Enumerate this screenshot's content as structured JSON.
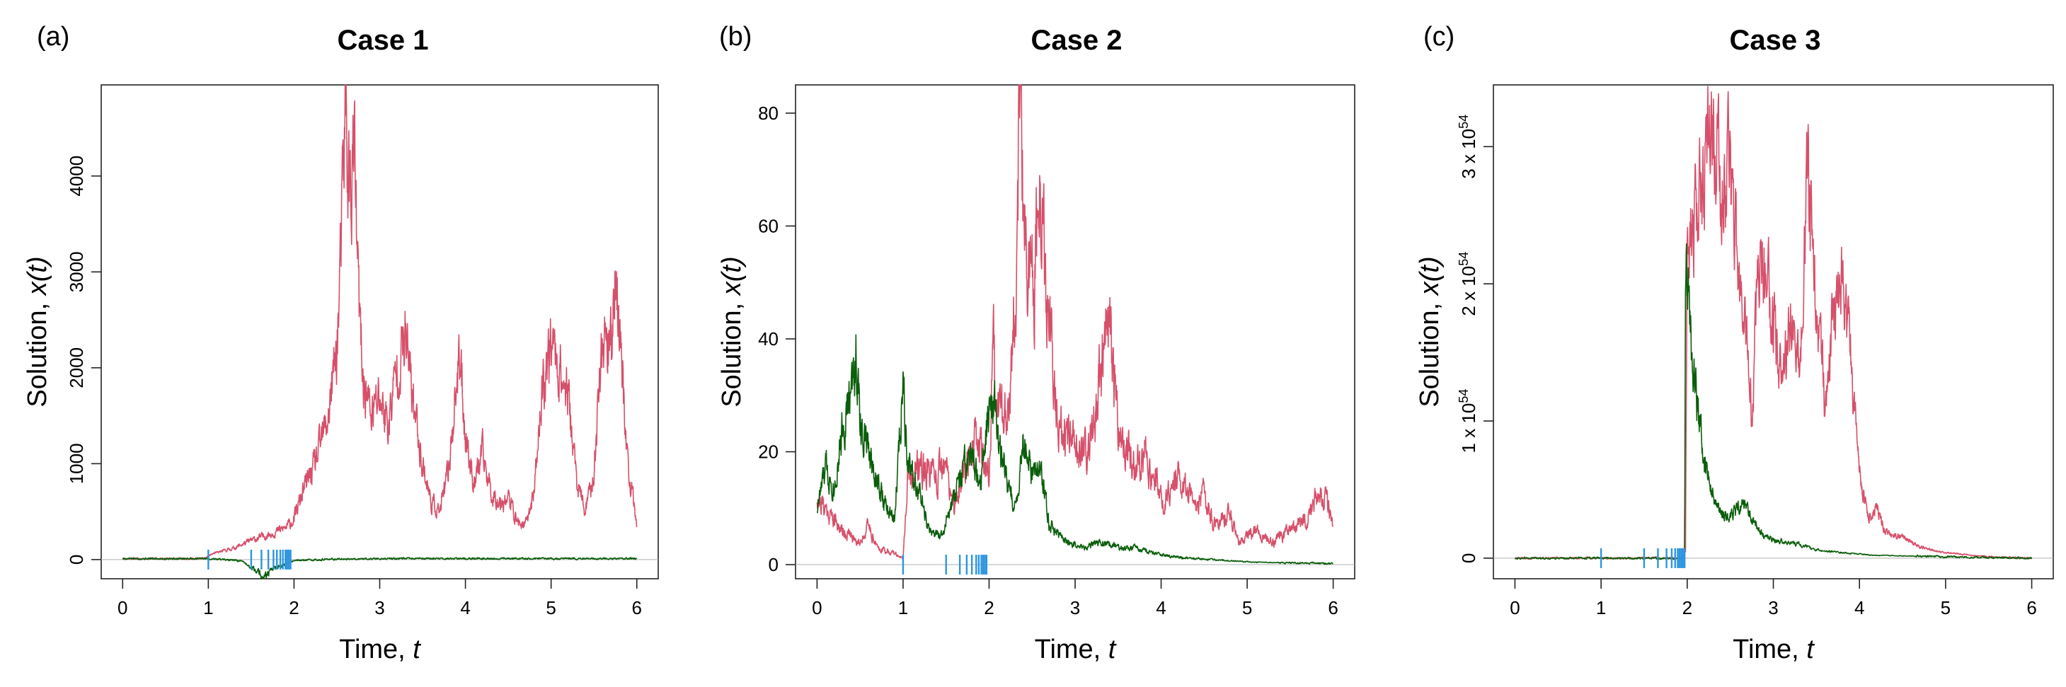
{
  "colors": {
    "red_series": "#d6506a",
    "green_series": "#0b5e0b",
    "event_marks": "#2b95e0"
  },
  "chart_data": [
    {
      "type": "line",
      "panel_label": "(a)",
      "title": "Case 1",
      "xlabel": "Time, ",
      "xlabel_var": "t",
      "ylabel": "Solution, ",
      "ylabel_var": "x(t)",
      "xlim": [
        -0.25,
        6.25
      ],
      "ylim": [
        -200,
        4950
      ],
      "x_ticks": [
        "0",
        "1",
        "2",
        "3",
        "4",
        "5",
        "6"
      ],
      "y_ticks": [
        {
          "v": 0,
          "label": "0"
        },
        {
          "v": 1000,
          "label": "1000"
        },
        {
          "v": 2000,
          "label": "2000"
        },
        {
          "v": 3000,
          "label": "3000"
        },
        {
          "v": 4000,
          "label": "4000"
        }
      ],
      "event_times": [
        1.0,
        1.5,
        1.62,
        1.7,
        1.76,
        1.8,
        1.84,
        1.87,
        1.9,
        1.92,
        1.94,
        1.96
      ],
      "series": [
        {
          "color": "red",
          "key": [
            [
              0,
              10
            ],
            [
              0.5,
              10
            ],
            [
              0.95,
              10
            ],
            [
              1.05,
              60
            ],
            [
              1.3,
              120
            ],
            [
              1.5,
              200
            ],
            [
              1.7,
              260
            ],
            [
              1.9,
              330
            ],
            [
              2.0,
              420
            ],
            [
              2.1,
              700
            ],
            [
              2.25,
              1000
            ],
            [
              2.4,
              1500
            ],
            [
              2.5,
              2200
            ],
            [
              2.55,
              3200
            ],
            [
              2.6,
              4700
            ],
            [
              2.65,
              3800
            ],
            [
              2.7,
              4300
            ],
            [
              2.75,
              2800
            ],
            [
              2.8,
              1900
            ],
            [
              2.9,
              1500
            ],
            [
              3.0,
              1700
            ],
            [
              3.1,
              1400
            ],
            [
              3.2,
              2000
            ],
            [
              3.3,
              2300
            ],
            [
              3.4,
              1600
            ],
            [
              3.5,
              1000
            ],
            [
              3.6,
              600
            ],
            [
              3.7,
              500
            ],
            [
              3.8,
              900
            ],
            [
              3.9,
              1900
            ],
            [
              3.95,
              2000
            ],
            [
              4.0,
              1300
            ],
            [
              4.1,
              800
            ],
            [
              4.2,
              1100
            ],
            [
              4.3,
              700
            ],
            [
              4.4,
              600
            ],
            [
              4.5,
              650
            ],
            [
              4.6,
              400
            ],
            [
              4.7,
              350
            ],
            [
              4.8,
              700
            ],
            [
              4.9,
              1800
            ],
            [
              5.0,
              2300
            ],
            [
              5.1,
              2000
            ],
            [
              5.2,
              1700
            ],
            [
              5.3,
              800
            ],
            [
              5.4,
              500
            ],
            [
              5.5,
              900
            ],
            [
              5.6,
              2400
            ],
            [
              5.7,
              2200
            ],
            [
              5.75,
              3100
            ],
            [
              5.8,
              2300
            ],
            [
              5.85,
              1700
            ],
            [
              5.9,
              900
            ],
            [
              6.0,
              380
            ]
          ],
          "noise": 0.13,
          "seed": 11
        },
        {
          "color": "green",
          "key": [
            [
              0,
              10
            ],
            [
              1.0,
              10
            ],
            [
              1.2,
              0
            ],
            [
              1.4,
              -20
            ],
            [
              1.55,
              -120
            ],
            [
              1.65,
              -180
            ],
            [
              1.75,
              -100
            ],
            [
              1.9,
              -40
            ],
            [
              2.0,
              -10
            ],
            [
              2.5,
              5
            ],
            [
              3.0,
              10
            ],
            [
              4.0,
              10
            ],
            [
              5.0,
              10
            ],
            [
              6.0,
              10
            ]
          ],
          "noise": 0.25,
          "seed": 5
        }
      ]
    },
    {
      "type": "line",
      "panel_label": "(b)",
      "title": "Case 2",
      "xlabel": "Time, ",
      "xlabel_var": "t",
      "ylabel": "Solution, ",
      "ylabel_var": "x(t)",
      "xlim": [
        -0.25,
        6.25
      ],
      "ylim": [
        -2.5,
        85
      ],
      "x_ticks": [
        "0",
        "1",
        "2",
        "3",
        "4",
        "5",
        "6"
      ],
      "y_ticks": [
        {
          "v": 0,
          "label": "0"
        },
        {
          "v": 20,
          "label": "20"
        },
        {
          "v": 40,
          "label": "40"
        },
        {
          "v": 60,
          "label": "60"
        },
        {
          "v": 80,
          "label": "80"
        }
      ],
      "event_times": [
        1.0,
        1.5,
        1.66,
        1.74,
        1.8,
        1.85,
        1.88,
        1.91,
        1.93,
        1.95,
        1.97
      ],
      "series": [
        {
          "color": "red",
          "key": [
            [
              0,
              12
            ],
            [
              0.1,
              10
            ],
            [
              0.3,
              6
            ],
            [
              0.5,
              4
            ],
            [
              0.6,
              7
            ],
            [
              0.7,
              3
            ],
            [
              0.9,
              2
            ],
            [
              1.0,
              1
            ],
            [
              1.05,
              14
            ],
            [
              1.2,
              18
            ],
            [
              1.35,
              15
            ],
            [
              1.5,
              17
            ],
            [
              1.6,
              10
            ],
            [
              1.75,
              20
            ],
            [
              1.9,
              22
            ],
            [
              2.0,
              15
            ],
            [
              2.05,
              40
            ],
            [
              2.1,
              30
            ],
            [
              2.2,
              25
            ],
            [
              2.3,
              45
            ],
            [
              2.35,
              80
            ],
            [
              2.4,
              60
            ],
            [
              2.5,
              50
            ],
            [
              2.6,
              62
            ],
            [
              2.7,
              40
            ],
            [
              2.8,
              25
            ],
            [
              3.0,
              20
            ],
            [
              3.2,
              22
            ],
            [
              3.3,
              35
            ],
            [
              3.4,
              42
            ],
            [
              3.5,
              25
            ],
            [
              3.7,
              16
            ],
            [
              3.8,
              20
            ],
            [
              4.0,
              12
            ],
            [
              4.2,
              15
            ],
            [
              4.4,
              10
            ],
            [
              4.5,
              13
            ],
            [
              4.6,
              7
            ],
            [
              4.8,
              9
            ],
            [
              4.9,
              4
            ],
            [
              5.1,
              6
            ],
            [
              5.3,
              4
            ],
            [
              5.5,
              6
            ],
            [
              5.7,
              8
            ],
            [
              5.85,
              13
            ],
            [
              5.95,
              10
            ],
            [
              6.0,
              7
            ]
          ],
          "noise": 0.16,
          "seed": 21
        },
        {
          "color": "green",
          "key": [
            [
              0,
              10
            ],
            [
              0.1,
              17
            ],
            [
              0.2,
              14
            ],
            [
              0.3,
              25
            ],
            [
              0.4,
              30
            ],
            [
              0.45,
              38
            ],
            [
              0.5,
              25
            ],
            [
              0.6,
              20
            ],
            [
              0.7,
              15
            ],
            [
              0.8,
              10
            ],
            [
              0.9,
              8
            ],
            [
              0.95,
              20
            ],
            [
              1.0,
              34
            ],
            [
              1.05,
              20
            ],
            [
              1.2,
              12
            ],
            [
              1.3,
              6
            ],
            [
              1.45,
              5
            ],
            [
              1.6,
              12
            ],
            [
              1.7,
              17
            ],
            [
              1.8,
              18
            ],
            [
              1.9,
              14
            ],
            [
              2.05,
              34
            ],
            [
              2.1,
              22
            ],
            [
              2.2,
              15
            ],
            [
              2.3,
              10
            ],
            [
              2.4,
              22
            ],
            [
              2.5,
              15
            ],
            [
              2.6,
              18
            ],
            [
              2.7,
              7
            ],
            [
              2.9,
              4
            ],
            [
              3.1,
              3
            ],
            [
              3.3,
              4
            ],
            [
              3.5,
              3
            ],
            [
              3.7,
              3
            ],
            [
              3.9,
              2
            ],
            [
              4.1,
              1.5
            ],
            [
              4.5,
              1
            ],
            [
              5.0,
              0.5
            ],
            [
              5.5,
              0.3
            ],
            [
              6.0,
              0.2
            ]
          ],
          "noise": 0.14,
          "seed": 33
        }
      ]
    },
    {
      "type": "line",
      "panel_label": "(c)",
      "title": "Case 3",
      "xlabel": "Time, ",
      "xlabel_var": "t",
      "ylabel": "Solution, ",
      "ylabel_var": "x(t)",
      "xlim": [
        -0.25,
        6.25
      ],
      "ylim": [
        -0.15,
        3.45
      ],
      "y_scale_note": "values in units of 10^54",
      "x_ticks": [
        "0",
        "1",
        "2",
        "3",
        "4",
        "5",
        "6"
      ],
      "y_ticks": [
        {
          "v": 0,
          "label": "0"
        },
        {
          "v": 1,
          "label": "1 x 10",
          "exp": "54"
        },
        {
          "v": 2,
          "label": "2 x 10",
          "exp": "54"
        },
        {
          "v": 3,
          "label": "3 x 10",
          "exp": "54"
        }
      ],
      "event_times": [
        1.0,
        1.5,
        1.66,
        1.76,
        1.82,
        1.86,
        1.89,
        1.91,
        1.93,
        1.95,
        1.97
      ],
      "series": [
        {
          "color": "red",
          "key": [
            [
              0,
              0
            ],
            [
              1.95,
              0
            ],
            [
              1.98,
              0.05
            ],
            [
              2.0,
              2.7
            ],
            [
              2.05,
              2.3
            ],
            [
              2.1,
              2.5
            ],
            [
              2.2,
              2.8
            ],
            [
              2.25,
              3.0
            ],
            [
              2.3,
              3.2
            ],
            [
              2.4,
              2.6
            ],
            [
              2.5,
              2.9
            ],
            [
              2.6,
              2.0
            ],
            [
              2.7,
              1.5
            ],
            [
              2.75,
              1.0
            ],
            [
              2.8,
              1.8
            ],
            [
              2.9,
              2.2
            ],
            [
              3.0,
              1.7
            ],
            [
              3.1,
              1.3
            ],
            [
              3.2,
              1.7
            ],
            [
              3.3,
              1.4
            ],
            [
              3.4,
              2.8
            ],
            [
              3.5,
              1.8
            ],
            [
              3.6,
              1.2
            ],
            [
              3.7,
              1.8
            ],
            [
              3.8,
              2.0
            ],
            [
              3.9,
              1.5
            ],
            [
              4.0,
              0.6
            ],
            [
              4.1,
              0.3
            ],
            [
              4.2,
              0.35
            ],
            [
              4.3,
              0.2
            ],
            [
              4.5,
              0.15
            ],
            [
              4.7,
              0.08
            ],
            [
              5.0,
              0.04
            ],
            [
              5.5,
              0.01
            ],
            [
              6.0,
              0
            ]
          ],
          "noise": 0.12,
          "seed": 44
        },
        {
          "color": "green",
          "key": [
            [
              0,
              0
            ],
            [
              1.95,
              0
            ],
            [
              1.97,
              0.02
            ],
            [
              1.98,
              2.1
            ],
            [
              2.02,
              1.8
            ],
            [
              2.1,
              1.2
            ],
            [
              2.2,
              0.7
            ],
            [
              2.35,
              0.35
            ],
            [
              2.5,
              0.3
            ],
            [
              2.65,
              0.4
            ],
            [
              2.75,
              0.3
            ],
            [
              2.9,
              0.15
            ],
            [
              3.1,
              0.12
            ],
            [
              3.3,
              0.1
            ],
            [
              3.5,
              0.06
            ],
            [
              3.8,
              0.04
            ],
            [
              4.2,
              0.02
            ],
            [
              5.0,
              0.01
            ],
            [
              6.0,
              0
            ]
          ],
          "noise": 0.12,
          "seed": 55
        }
      ]
    }
  ]
}
